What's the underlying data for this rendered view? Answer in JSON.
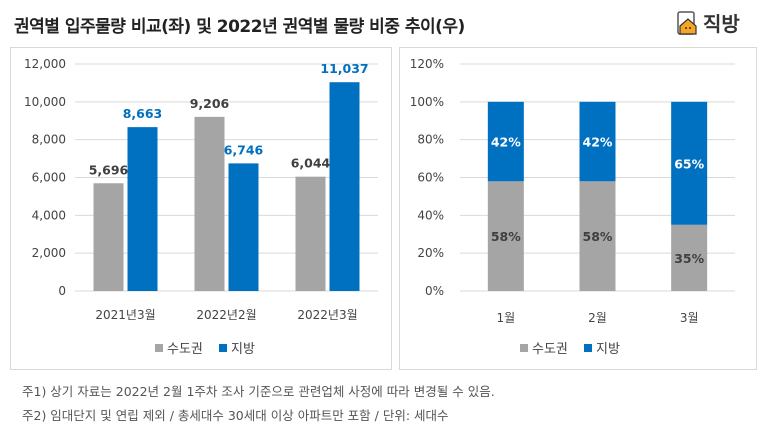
{
  "header": {
    "title": "권역별 입주물량 비교(좌) 및 2022년 권역별 물량 비중 추이(우)",
    "logo": "직방"
  },
  "notes": [
    "주1) 상기 자료는 2022년 2월 1주차 조사 기준으로 관련업체 사정에 따라 변경될 수 있음.",
    "주2) 임대단지 및 연립 제외 / 총세대수 30세대 이상 아파트만 포함 / 단위: 세대수"
  ],
  "colors": {
    "capital": "#a5a5a5",
    "regional": "#0070c0"
  },
  "chart_data": [
    {
      "type": "bar",
      "categories": [
        "2021년3월",
        "2022년2월",
        "2022년3월"
      ],
      "series": [
        {
          "name": "수도권",
          "values": [
            5696,
            9206,
            6044
          ],
          "labels": [
            "5,696",
            "9,206",
            "6,044"
          ]
        },
        {
          "name": "지방",
          "values": [
            8663,
            6746,
            11037
          ],
          "labels": [
            "8,663",
            "6,746",
            "11,037"
          ]
        }
      ],
      "ylim": [
        0,
        12000
      ],
      "yticks": [
        "0",
        "2,000",
        "4,000",
        "6,000",
        "8,000",
        "10,000",
        "12,000"
      ],
      "grid": true,
      "legend": "bottom"
    },
    {
      "type": "bar",
      "stacked": true,
      "categories": [
        "1월",
        "2월",
        "3월"
      ],
      "series": [
        {
          "name": "수도권",
          "values": [
            58,
            58,
            35
          ],
          "labels": [
            "58%",
            "58%",
            "35%"
          ]
        },
        {
          "name": "지방",
          "values": [
            42,
            42,
            65
          ],
          "labels": [
            "42%",
            "42%",
            "65%"
          ]
        }
      ],
      "ylim": [
        0,
        120
      ],
      "yticks": [
        "0%",
        "20%",
        "40%",
        "60%",
        "80%",
        "100%",
        "120%"
      ],
      "grid": true,
      "legend": "bottom"
    }
  ]
}
